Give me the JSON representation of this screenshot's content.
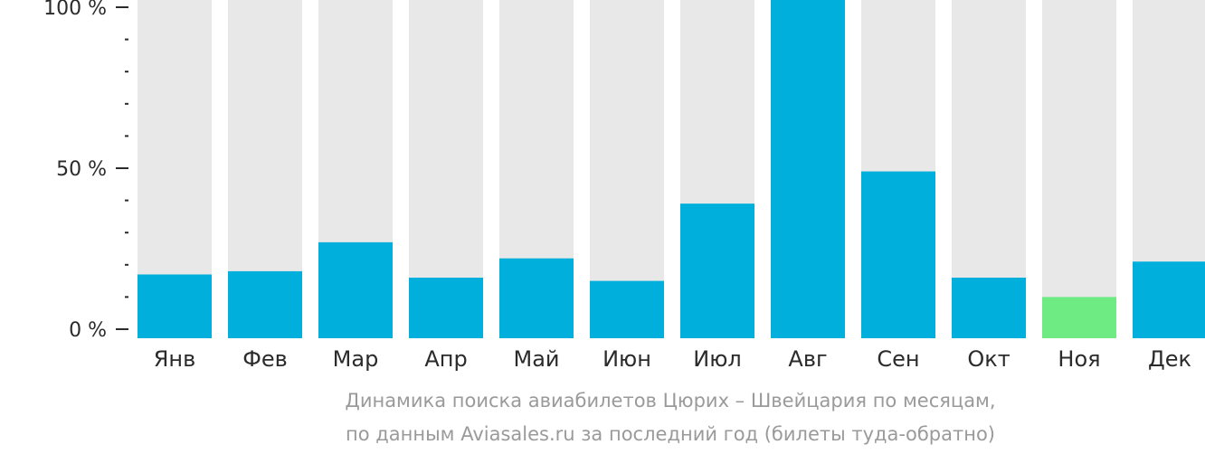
{
  "chart_data": {
    "type": "bar",
    "categories": [
      "Янв",
      "Фев",
      "Мар",
      "Апр",
      "Май",
      "Июн",
      "Июл",
      "Авг",
      "Сен",
      "Окт",
      "Ноя",
      "Дек"
    ],
    "values": [
      17,
      18,
      27,
      16,
      22,
      15,
      39,
      100,
      49,
      16,
      10,
      21
    ],
    "highlight_index": 10,
    "ylim": [
      0,
      100
    ],
    "y_ticks": [
      {
        "value": 0,
        "label": "0 %"
      },
      {
        "value": 50,
        "label": "50 %"
      },
      {
        "value": 100,
        "label": "100 %"
      }
    ],
    "minor_tick_step": 10,
    "grid": false,
    "caption_lines": [
      "Динамика поиска авиабилетов Цюрих – Швейцария по месяцам,",
      "по данным Aviasales.ru за последний год (билеты туда-обратно)"
    ],
    "colors": {
      "bar": "#00afdc",
      "highlight": "#6eeb82",
      "track": "#e8e8e8",
      "axis": "#2b2b2b",
      "caption": "#9a9a9a"
    }
  }
}
